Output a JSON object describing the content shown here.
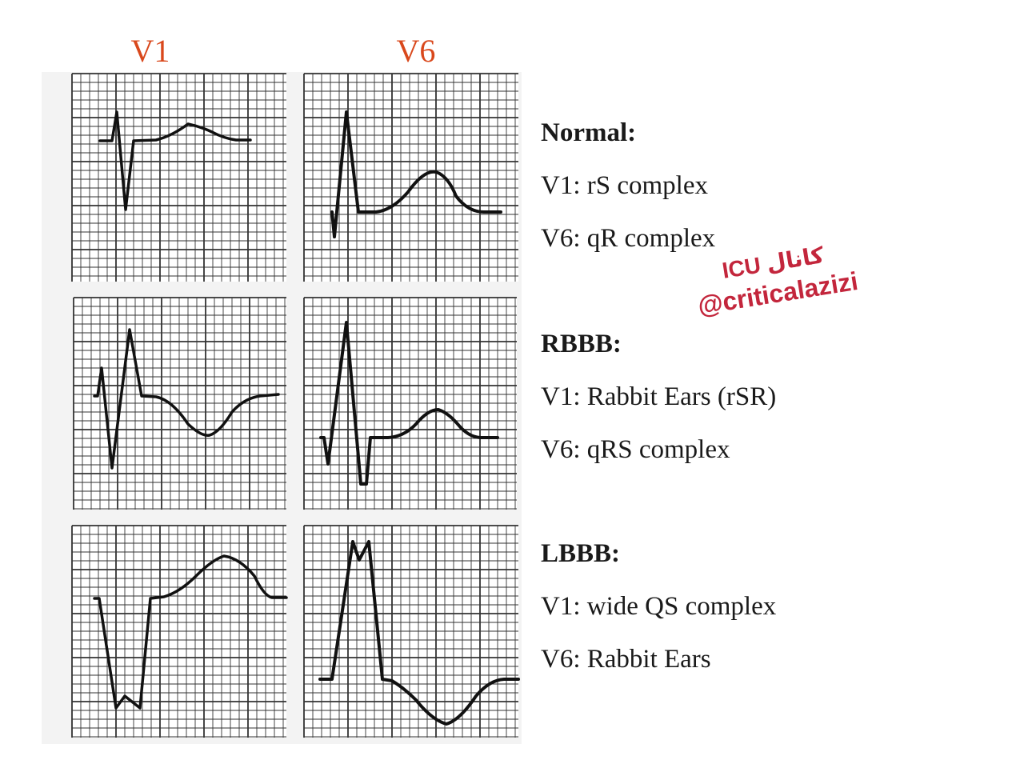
{
  "lead_headers": {
    "v1": "V1",
    "v6": "V6"
  },
  "sections": [
    {
      "id": "normal",
      "title": "Normal:",
      "v1": "V1: rS complex",
      "v6": "V6: qR complex"
    },
    {
      "id": "rbbb",
      "title": "RBBB:",
      "v1": "V1: Rabbit Ears (rSR)",
      "v6": "V6: qRS complex"
    },
    {
      "id": "lbbb",
      "title": "LBBB:",
      "v1": "V1: wide QS complex",
      "v6": "V6: Rabbit Ears"
    }
  ],
  "watermark": {
    "channel": "کانال ICU",
    "handle": "@criticalazizi"
  },
  "colors": {
    "header": "#d9481c",
    "grid": "#333333",
    "trace": "#111111",
    "watermark": "#c3263c",
    "panel_bg": "#f3f3f3"
  }
}
